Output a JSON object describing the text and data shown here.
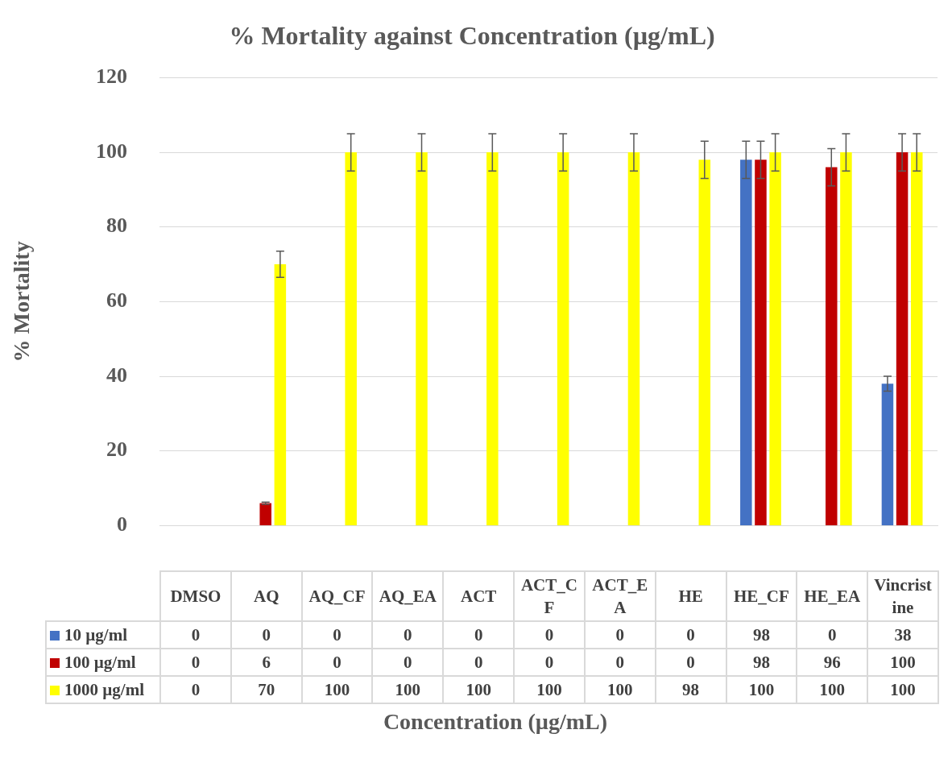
{
  "chart_data": {
    "type": "bar",
    "title": "% Mortality against Concentration (µg/mL)",
    "xlabel": "Concentration (µg/mL)",
    "ylabel": "% Mortality",
    "categories": [
      "DMSO",
      "AQ",
      "AQ_CF",
      "AQ_EA",
      "ACT",
      "ACT_CF",
      "ACT_EA",
      "HE",
      "HE_CF",
      "HE_EA",
      "Vincristine"
    ],
    "series": [
      {
        "name": "10 µg/ml",
        "color": "#4472c4",
        "values": [
          0,
          0,
          0,
          0,
          0,
          0,
          0,
          0,
          98,
          0,
          38
        ],
        "errors": [
          null,
          null,
          null,
          null,
          null,
          null,
          null,
          null,
          5,
          null,
          2
        ]
      },
      {
        "name": "100 µg/ml",
        "color": "#c00000",
        "values": [
          0,
          6,
          0,
          0,
          0,
          0,
          0,
          0,
          98,
          96,
          100
        ],
        "errors": [
          null,
          0.3,
          null,
          null,
          null,
          null,
          null,
          null,
          5,
          5,
          5
        ]
      },
      {
        "name": "1000 µg/ml",
        "color": "#ffff00",
        "values": [
          0,
          70,
          100,
          100,
          100,
          100,
          100,
          98,
          100,
          100,
          100
        ],
        "errors": [
          null,
          3.5,
          5,
          5,
          5,
          5,
          5,
          5,
          5,
          5,
          5
        ]
      }
    ],
    "ylim": [
      0,
      120
    ],
    "yticks": [
      0,
      20,
      40,
      60,
      80,
      100,
      120
    ],
    "grid": "y",
    "legend": "bottom",
    "data_labels": true,
    "tick_labels": "y"
  }
}
